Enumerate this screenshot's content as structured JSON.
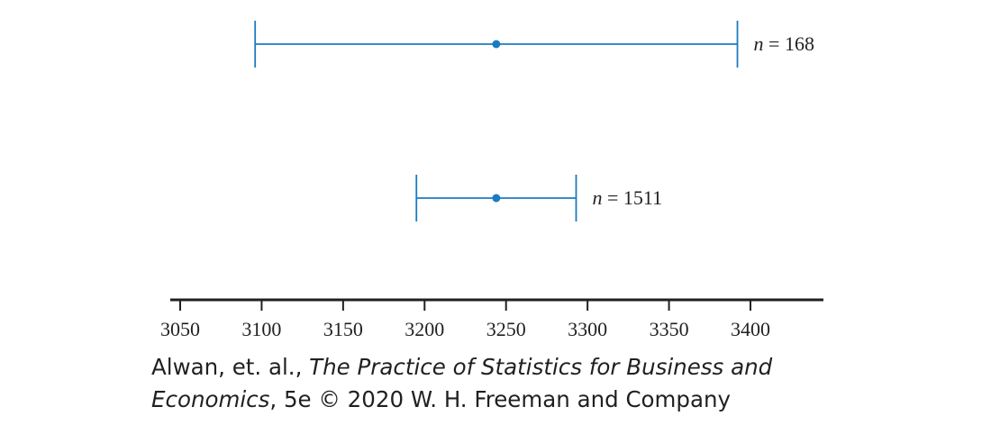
{
  "chart_data": {
    "type": "interval",
    "xlim": [
      3045,
      3445
    ],
    "xticks": [
      3050,
      3100,
      3150,
      3200,
      3250,
      3300,
      3350,
      3400
    ],
    "intervals": [
      {
        "label_var": "n",
        "label_eq": " = ",
        "n": "168",
        "center": 3244,
        "low": 3096,
        "high": 3392
      },
      {
        "label_var": "n",
        "label_eq": " = ",
        "n": "1511",
        "center": 3244,
        "low": 3195,
        "high": 3293
      }
    ],
    "colors": {
      "interval": "#1b7bc1",
      "axis": "#231f20"
    }
  },
  "credit": {
    "authors": "Alwan, et. al., ",
    "title_part1": "The Practice of Statistics for Business and",
    "title_part2": "Economics",
    "rest": ", 5e © 2020 W. H. Freeman and Company"
  }
}
